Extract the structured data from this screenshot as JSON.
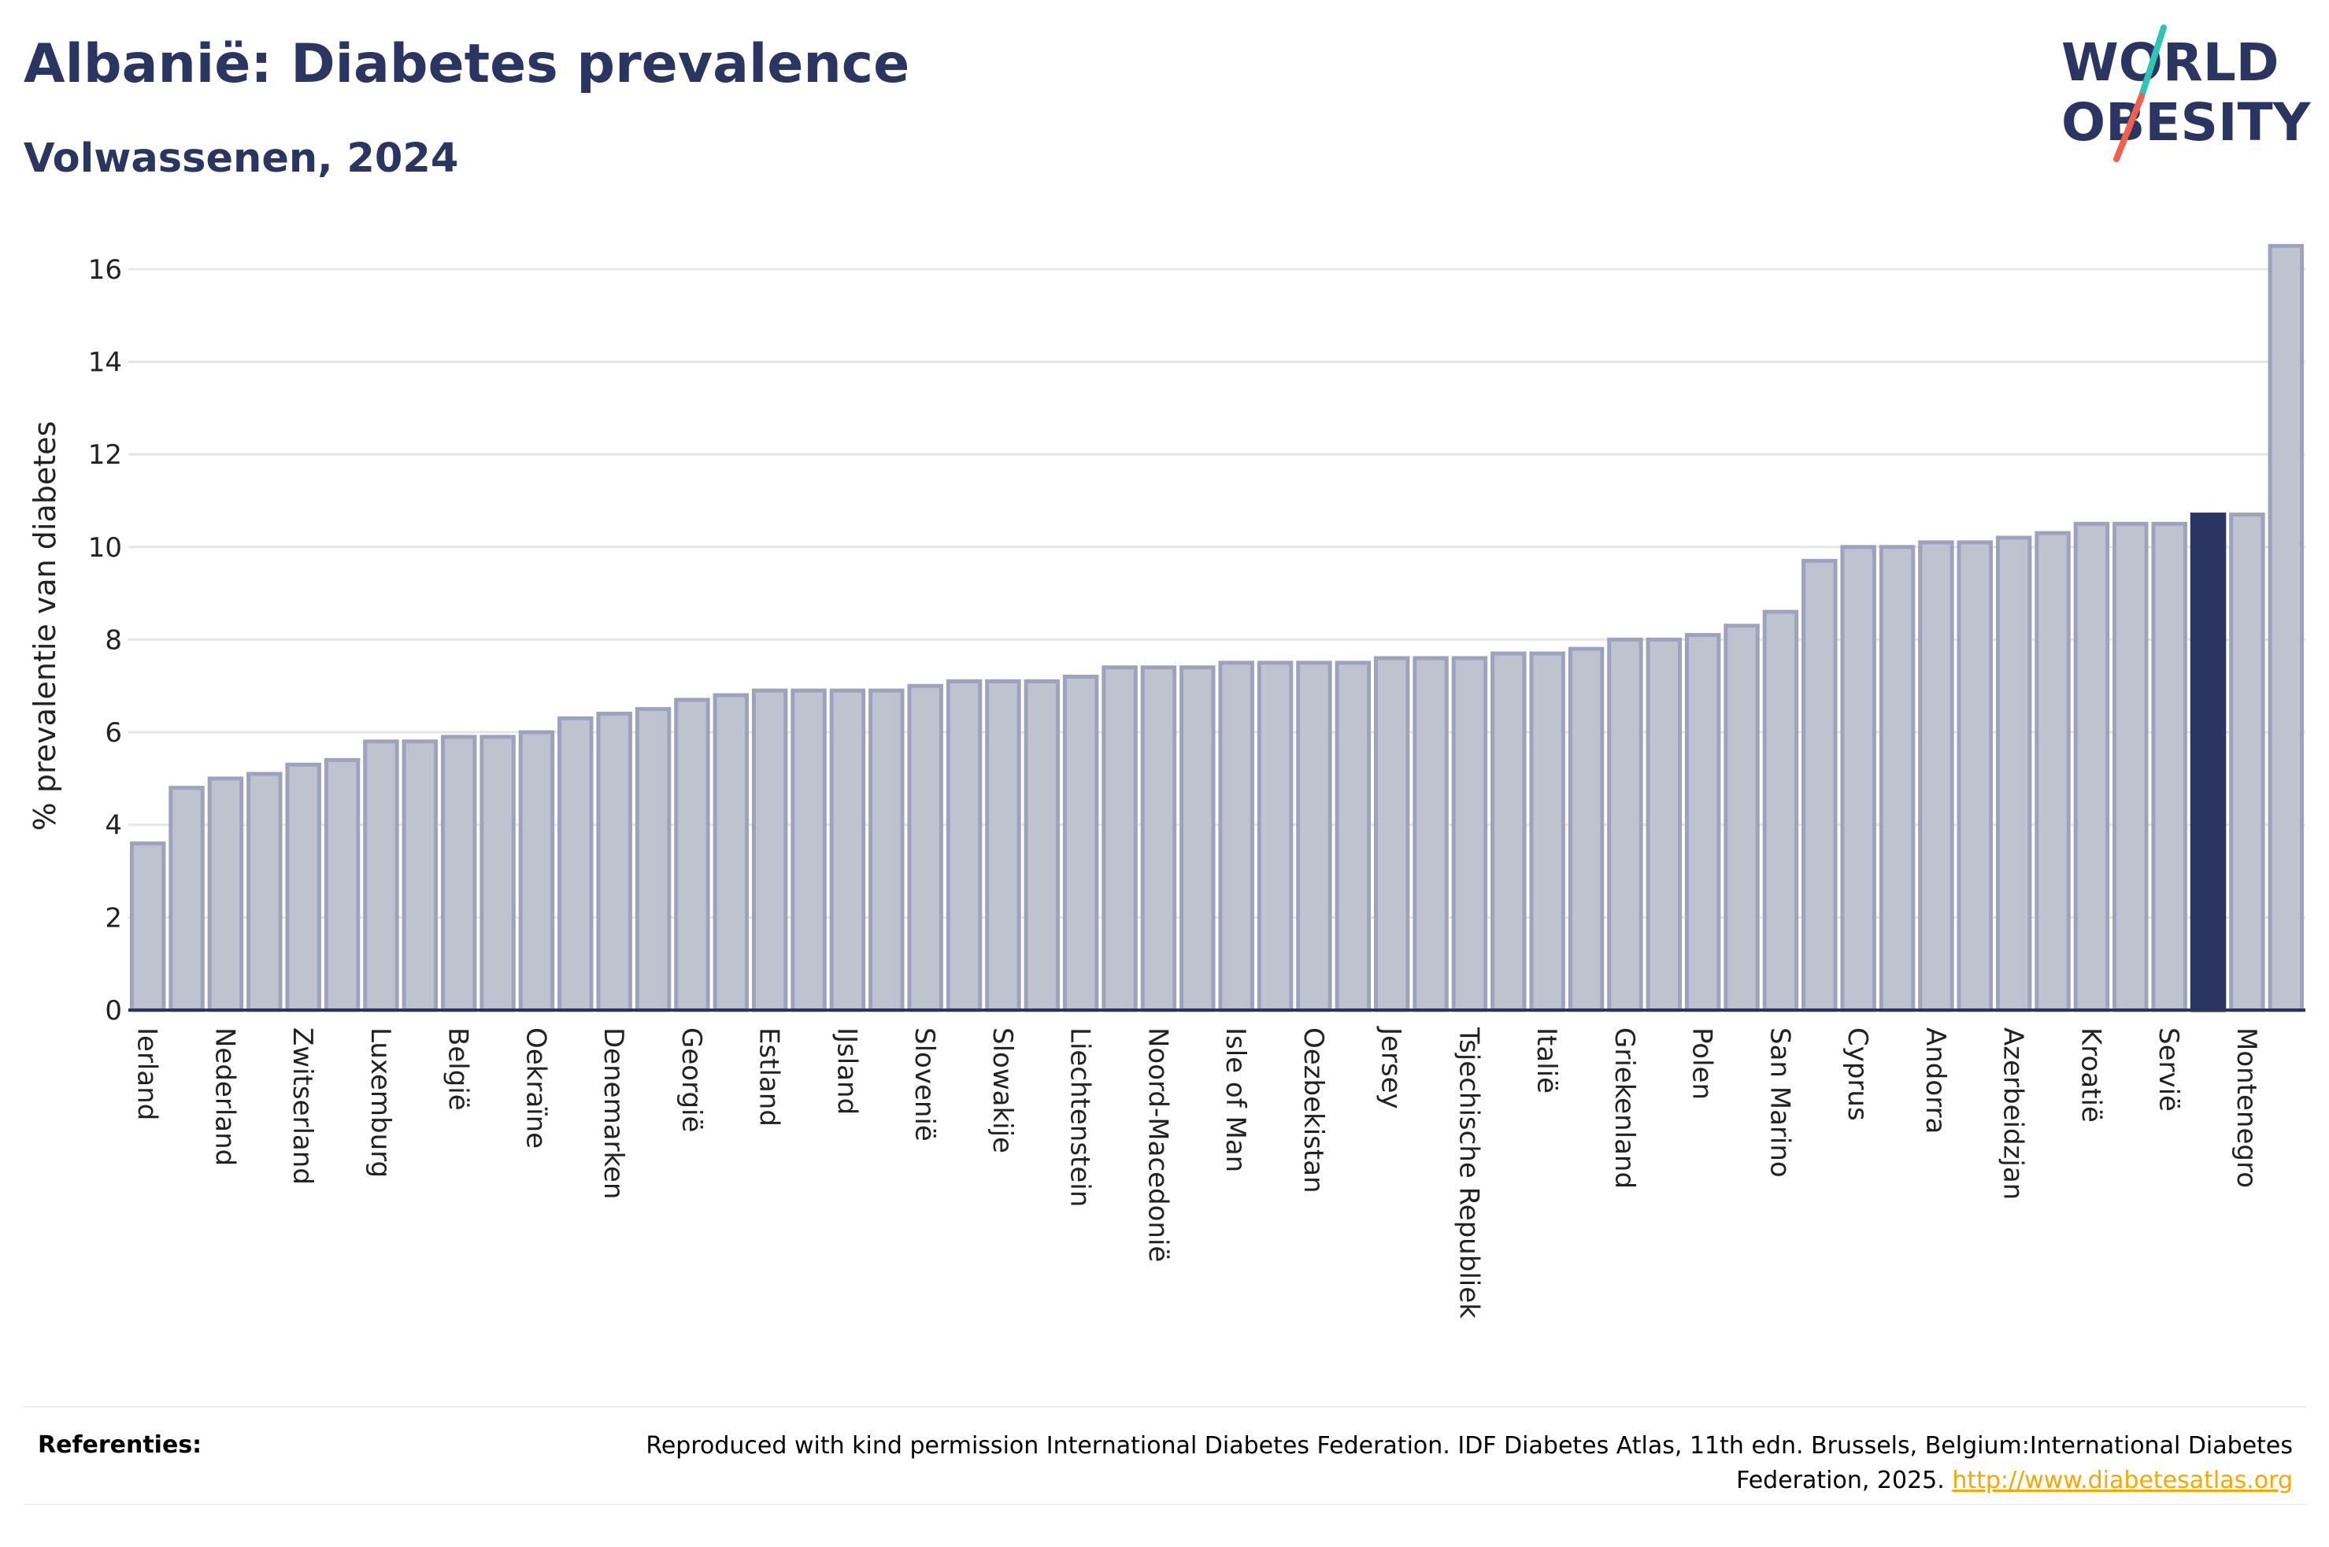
{
  "header": {
    "title": "Albanië: Diabetes prevalence",
    "subtitle": "Volwassenen, 2024"
  },
  "logo": {
    "line1": "WORLD",
    "line2": "OBESITY",
    "colors": {
      "text": "#2b3562",
      "slash_top": "#2ec4b6",
      "slash_bottom": "#f0604d"
    }
  },
  "colors": {
    "bar_fill": "#bfc3d0",
    "bar_stroke": "#9ea3bd",
    "highlight": "#2b3562",
    "grid": "#e6e6e6",
    "axis": "#2b3562"
  },
  "chart_data": {
    "type": "bar",
    "ylabel": "% prevalentie van diabetes",
    "ylim": [
      0,
      17
    ],
    "yticks": [
      0,
      2,
      4,
      6,
      8,
      10,
      12,
      14,
      16
    ],
    "grid": true,
    "highlight_index": 53,
    "visible_category_labels": [
      "Ierland",
      "Nederland",
      "Zwitserland",
      "Luxemburg",
      "België",
      "Oekraïne",
      "Denemarken",
      "Georgië",
      "Estland",
      "IJsland",
      "Slovenië",
      "Slowakije",
      "Liechtenstein",
      "Noord-Macedonië",
      "Isle of Man",
      "Oezbekistan",
      "Jersey",
      "Tsjechische Republiek",
      "Italië",
      "Griekenland",
      "Polen",
      "San Marino",
      "Cyprus",
      "Andorra",
      "Azerbeidzjan",
      "Kroatië",
      "Servië",
      "Montenegro"
    ],
    "values": [
      3.6,
      4.8,
      5.0,
      5.1,
      5.3,
      5.4,
      5.8,
      5.8,
      5.9,
      5.9,
      6.0,
      6.3,
      6.4,
      6.5,
      6.7,
      6.8,
      6.9,
      6.9,
      6.9,
      6.9,
      7.0,
      7.1,
      7.1,
      7.1,
      7.2,
      7.4,
      7.4,
      7.4,
      7.5,
      7.5,
      7.5,
      7.5,
      7.6,
      7.6,
      7.6,
      7.7,
      7.7,
      7.8,
      8.0,
      8.0,
      8.1,
      8.3,
      8.6,
      9.7,
      10.0,
      10.0,
      10.1,
      10.1,
      10.2,
      10.3,
      10.5,
      10.5,
      10.5,
      10.7,
      10.7,
      16.5
    ]
  },
  "references": {
    "label": "Referenties:",
    "text": "Reproduced with kind permission International Diabetes Federation. IDF Diabetes Atlas, 11th edn. Brussels, Belgium:International Diabetes Federation, 2025.",
    "link": "http://www.diabetesatlas.org"
  }
}
